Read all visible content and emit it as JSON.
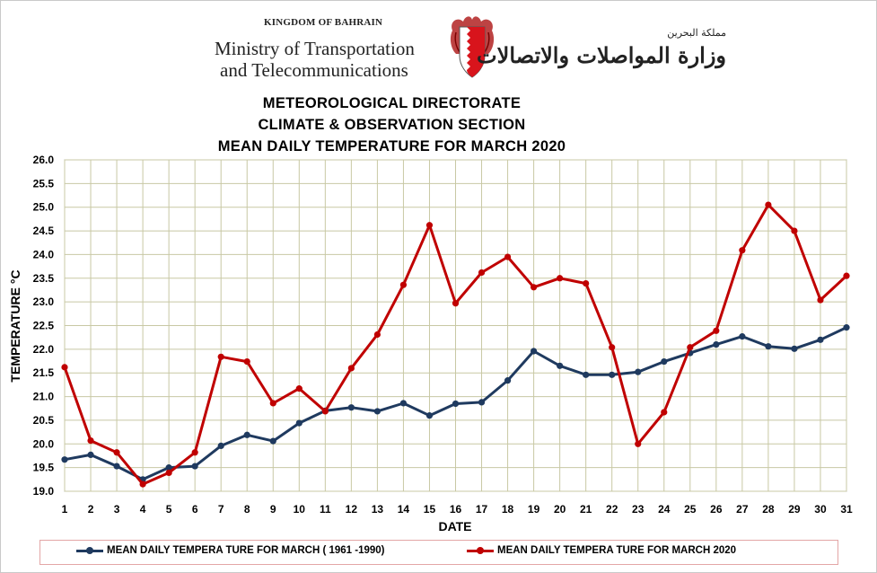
{
  "header": {
    "country": "KINGDOM OF BAHRAIN",
    "ministry_line1": "Ministry of Transportation",
    "ministry_line2": "and Telecommunications",
    "arabic_small": "مملكة البحرين",
    "arabic_big": "وزارة المواصلات والاتصالات",
    "crest_icon": "bahrain-coat-of-arms-icon"
  },
  "colors": {
    "normal_series": "#1f3a5f",
    "series_2020": "#c00000",
    "grid": "#c8c8a4",
    "axis": "#a0a0a0"
  },
  "chart_data": {
    "type": "line",
    "title_lines": [
      "METEOROLOGICAL DIRECTORATE",
      "CLIMATE & OBSERVATION SECTION",
      "MEAN DAILY TEMPERATURE  FOR MARCH 2020"
    ],
    "xlabel": "DATE",
    "ylabel": "TEMPERATURE °C",
    "ylim": [
      19.0,
      26.0
    ],
    "ystep": 0.5,
    "grid": true,
    "legend_position": "bottom",
    "x": [
      1,
      2,
      3,
      4,
      5,
      6,
      7,
      8,
      9,
      10,
      11,
      12,
      13,
      14,
      15,
      16,
      17,
      18,
      19,
      20,
      21,
      22,
      23,
      24,
      25,
      26,
      27,
      28,
      29,
      30,
      31
    ],
    "series": [
      {
        "name": "MEAN DAILY TEMPERA TURE FOR MARCH ( 1961 -1990)",
        "color": "#1f3a5f",
        "values": [
          19.67,
          19.77,
          19.53,
          19.25,
          19.5,
          19.53,
          19.96,
          20.19,
          20.06,
          20.44,
          20.7,
          20.77,
          20.69,
          20.86,
          20.6,
          20.85,
          20.88,
          21.34,
          21.96,
          21.65,
          21.46,
          21.46,
          21.52,
          21.74,
          21.92,
          22.1,
          22.27,
          22.06,
          22.01,
          22.2,
          22.46
        ]
      },
      {
        "name": "MEAN DAILY TEMPERA TURE FOR MARCH 2020",
        "color": "#c00000",
        "values": [
          21.62,
          20.07,
          19.82,
          19.15,
          19.39,
          19.82,
          21.84,
          21.74,
          20.86,
          21.17,
          20.69,
          21.6,
          22.31,
          23.36,
          24.62,
          22.97,
          23.62,
          23.95,
          23.31,
          23.5,
          23.39,
          22.04,
          20.0,
          20.67,
          22.04,
          22.39,
          24.09,
          25.05,
          24.5,
          23.04,
          23.55
        ]
      }
    ]
  }
}
